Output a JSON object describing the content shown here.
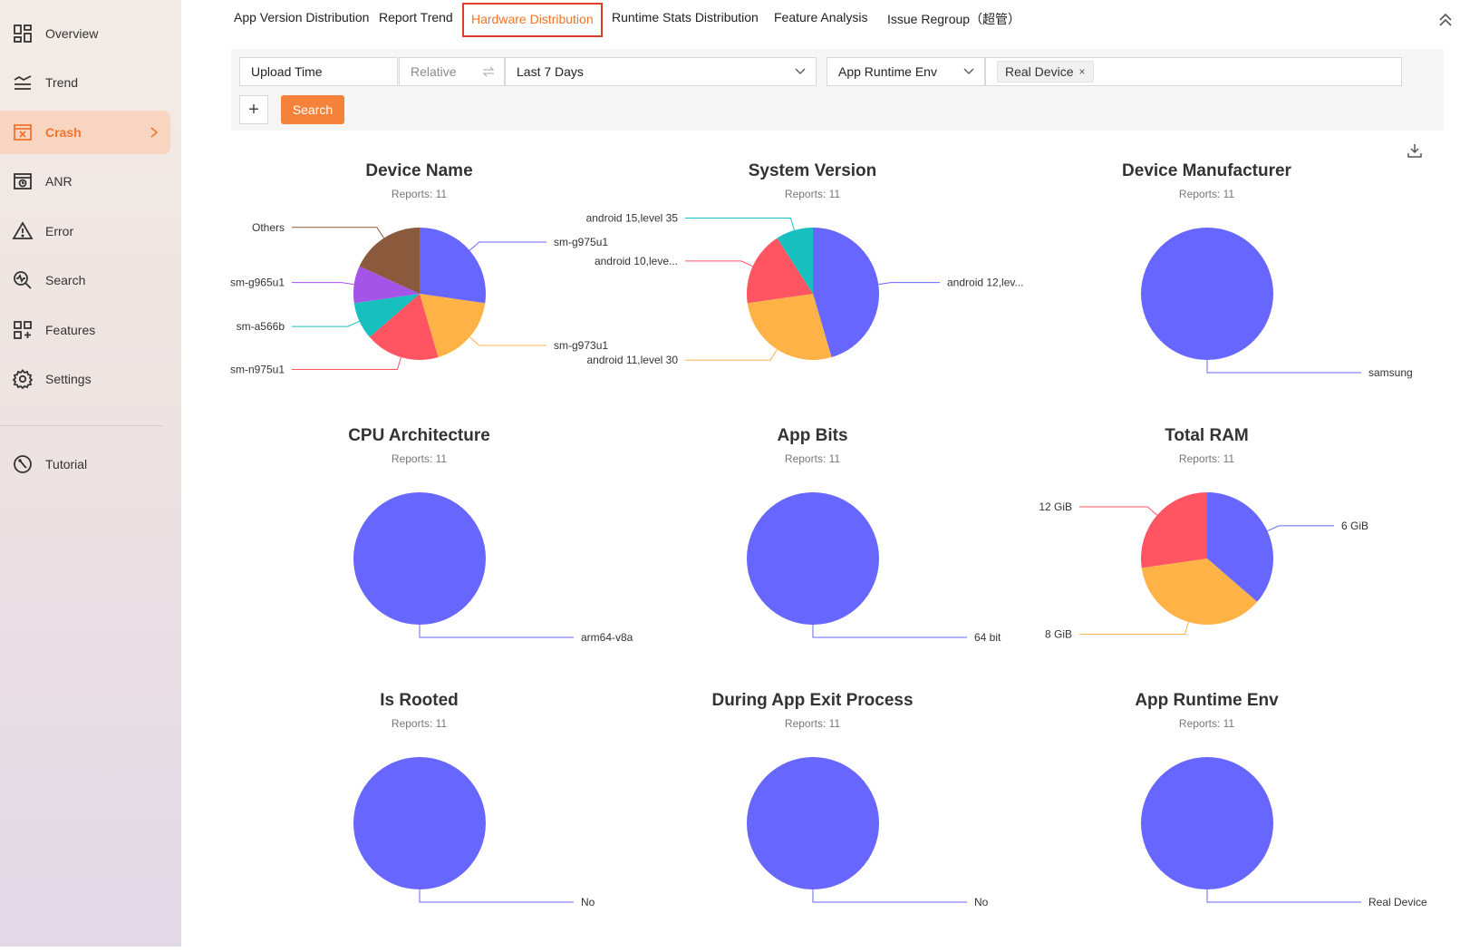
{
  "sidebar": {
    "items": [
      {
        "label": "Overview",
        "icon": "dashboard-icon"
      },
      {
        "label": "Trend",
        "icon": "trend-icon"
      },
      {
        "label": "Crash",
        "icon": "crash-icon"
      },
      {
        "label": "ANR",
        "icon": "anr-icon"
      },
      {
        "label": "Error",
        "icon": "warning-icon"
      },
      {
        "label": "Search",
        "icon": "search-icon"
      },
      {
        "label": "Features",
        "icon": "features-icon"
      },
      {
        "label": "Settings",
        "icon": "gear-icon"
      },
      {
        "label": "Tutorial",
        "icon": "compass-icon"
      }
    ],
    "active": "Crash"
  },
  "tabs": [
    {
      "label": "App Version Distribution"
    },
    {
      "label": "Report Trend"
    },
    {
      "label": "Hardware Distribution"
    },
    {
      "label": "Runtime Stats Distribution"
    },
    {
      "label": "Feature Analysis"
    },
    {
      "label": "Issue Regroup（超管）"
    }
  ],
  "active_tab": "Hardware Distribution",
  "filters": {
    "time_field": "Upload Time",
    "time_mode": "Relative",
    "time_range": "Last 7 Days",
    "env_field": "App Runtime Env",
    "env_value_tag": "Real Device",
    "tag_remove": "×"
  },
  "buttons": {
    "add": "+",
    "search": "Search"
  },
  "colors": {
    "accent": "#f0742a",
    "search_button": "#f5823a",
    "blue": "#6766ff",
    "orange": "#ffb347",
    "red": "#ff5461",
    "teal": "#17c0bf",
    "purple": "#a454e6",
    "brown": "#8b5a3c"
  },
  "chart_data": [
    {
      "type": "pie",
      "title": "Device Name",
      "subtitle": "Reports: 11",
      "slices": [
        {
          "label": "sm-g975u1",
          "value": 3,
          "color": "#6766ff"
        },
        {
          "label": "sm-g973u1",
          "value": 2,
          "color": "#ffb347"
        },
        {
          "label": "sm-n975u1",
          "value": 2,
          "color": "#ff5461"
        },
        {
          "label": "sm-a566b",
          "value": 1,
          "color": "#17c0bf"
        },
        {
          "label": "sm-g965u1",
          "value": 1,
          "color": "#a454e6"
        },
        {
          "label": "Others",
          "value": 2,
          "color": "#8b5a3c"
        }
      ]
    },
    {
      "type": "pie",
      "title": "System Version",
      "subtitle": "Reports: 11",
      "slices": [
        {
          "label": "android 12,lev...",
          "value": 5,
          "color": "#6766ff"
        },
        {
          "label": "android 11,level 30",
          "value": 3,
          "color": "#ffb347"
        },
        {
          "label": "android 10,leve...",
          "value": 2,
          "color": "#ff5461"
        },
        {
          "label": "android 15,level 35",
          "value": 1,
          "color": "#17c0bf"
        }
      ]
    },
    {
      "type": "pie",
      "title": "Device Manufacturer",
      "subtitle": "Reports: 11",
      "slices": [
        {
          "label": "samsung",
          "value": 11,
          "color": "#6766ff"
        }
      ]
    },
    {
      "type": "pie",
      "title": "CPU Architecture",
      "subtitle": "Reports: 11",
      "slices": [
        {
          "label": "arm64-v8a",
          "value": 11,
          "color": "#6766ff"
        }
      ]
    },
    {
      "type": "pie",
      "title": "App Bits",
      "subtitle": "Reports: 11",
      "slices": [
        {
          "label": "64 bit",
          "value": 11,
          "color": "#6766ff"
        }
      ]
    },
    {
      "type": "pie",
      "title": "Total RAM",
      "subtitle": "Reports: 11",
      "slices": [
        {
          "label": "6 GiB",
          "value": 4,
          "color": "#6766ff"
        },
        {
          "label": "8 GiB",
          "value": 4,
          "color": "#ffb347"
        },
        {
          "label": "12 GiB",
          "value": 3,
          "color": "#ff5461"
        }
      ]
    },
    {
      "type": "pie",
      "title": "Is Rooted",
      "subtitle": "Reports: 11",
      "slices": [
        {
          "label": "No",
          "value": 11,
          "color": "#6766ff"
        }
      ]
    },
    {
      "type": "pie",
      "title": "During App Exit Process",
      "subtitle": "Reports: 11",
      "slices": [
        {
          "label": "No",
          "value": 11,
          "color": "#6766ff"
        }
      ]
    },
    {
      "type": "pie",
      "title": "App Runtime Env",
      "subtitle": "Reports: 11",
      "slices": [
        {
          "label": "Real Device",
          "value": 11,
          "color": "#6766ff"
        }
      ]
    }
  ]
}
